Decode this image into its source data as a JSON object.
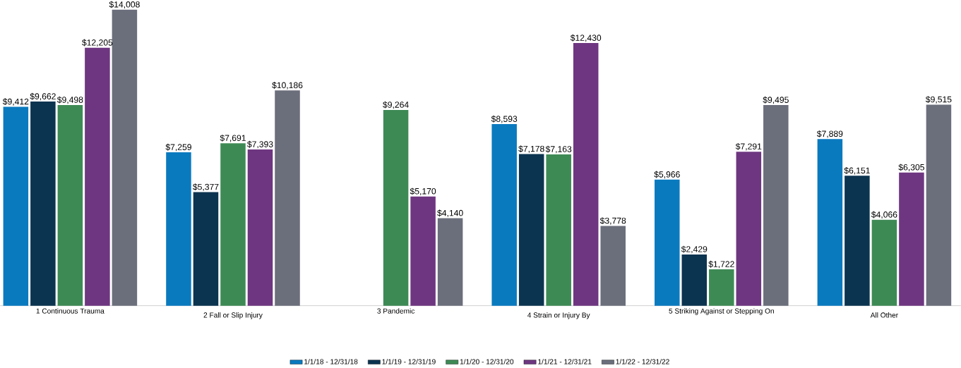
{
  "chart_data": {
    "type": "bar",
    "categories": [
      "1 Continuous Trauma",
      "2 Fall or Slip Injury",
      "3 Pandemic",
      "4 Strain or Injury By",
      "5 Striking Against or Stepping On",
      "All Other"
    ],
    "series": [
      {
        "name": "1/1/18 - 12/31/18",
        "color": "#0a7abf",
        "values": [
          9412,
          7259,
          null,
          8593,
          5966,
          7889
        ],
        "value_labels": [
          "$9,412",
          "$7,259",
          null,
          "$8,593",
          "$5,966",
          "$7,889"
        ]
      },
      {
        "name": "1/1/19 - 12/31/19",
        "color": "#0b3450",
        "values": [
          9662,
          5377,
          null,
          7178,
          2429,
          6151
        ],
        "value_labels": [
          "$9,662",
          "$5,377",
          null,
          "$7,178",
          "$2,429",
          "$6,151"
        ]
      },
      {
        "name": "1/1/20 - 12/31/20",
        "color": "#3e8a55",
        "values": [
          9498,
          7691,
          9264,
          7163,
          1722,
          4066
        ],
        "value_labels": [
          "$9,498",
          "$7,691",
          "$9,264",
          "$7,163",
          "$1,722",
          "$4,066"
        ]
      },
      {
        "name": "1/1/21 - 12/31/21",
        "color": "#6e3680",
        "values": [
          12205,
          7393,
          5170,
          12430,
          7291,
          6305
        ],
        "value_labels": [
          "$12,205",
          "$7,393",
          "$5,170",
          "$12,430",
          "$7,291",
          "$6,305"
        ]
      },
      {
        "name": "1/1/22 - 12/31/22",
        "color": "#6b6e7b",
        "values": [
          14008,
          10186,
          4140,
          3778,
          9495,
          9515
        ],
        "value_labels": [
          "$14,008",
          "$10,186",
          "$4,140",
          "$3,778",
          "$9,495",
          "$9,515"
        ]
      }
    ],
    "legend": "bottom"
  }
}
